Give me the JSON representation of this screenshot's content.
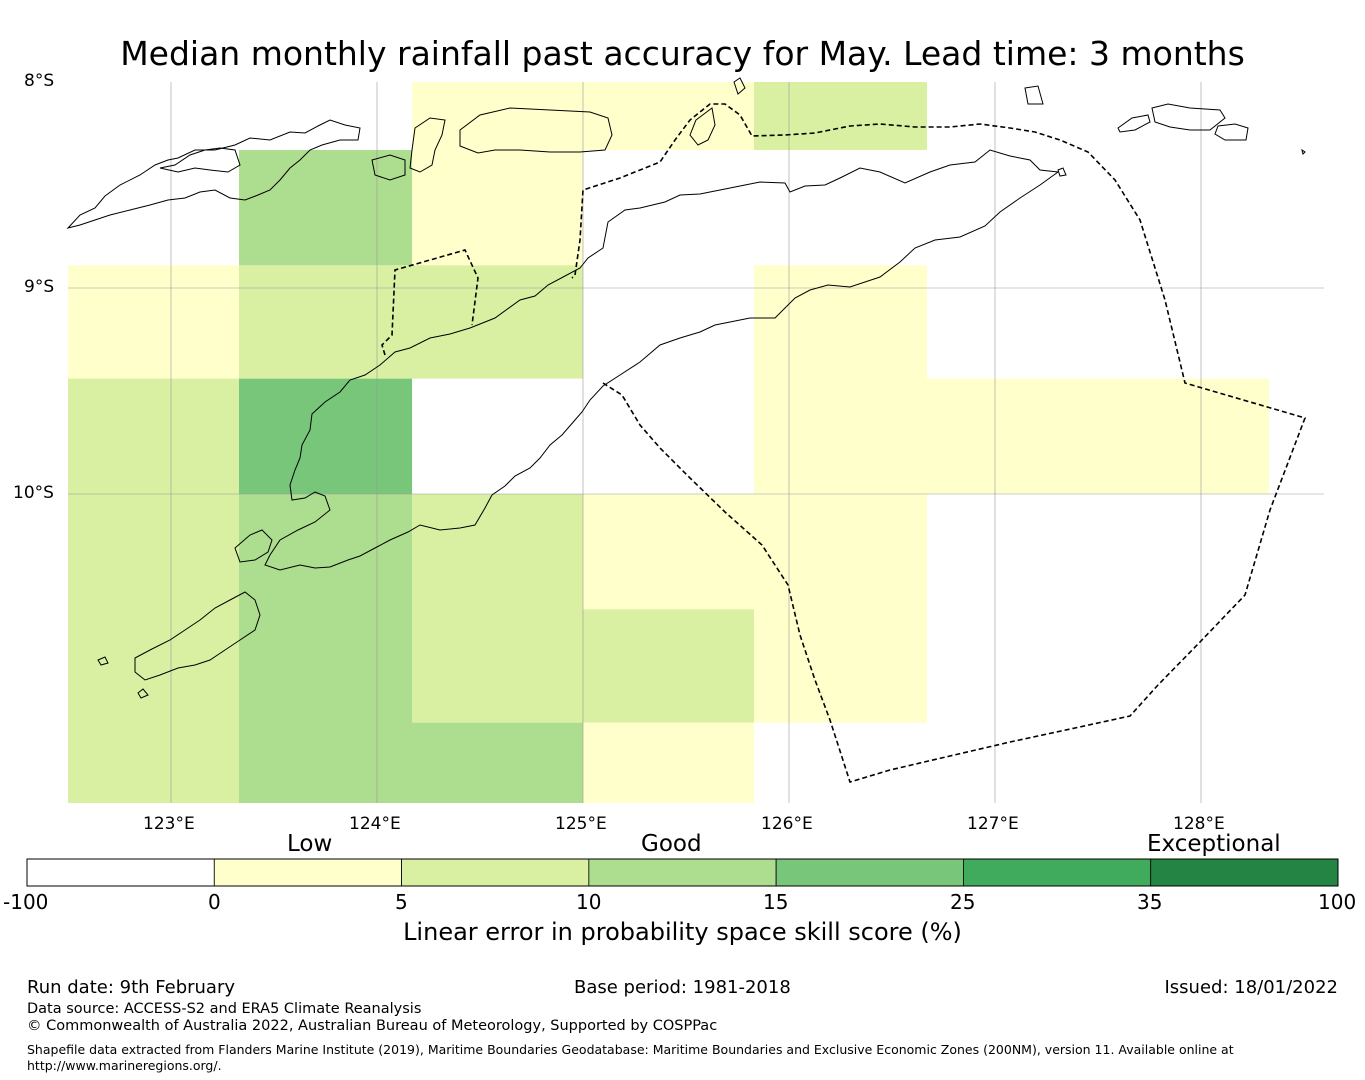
{
  "title": "Median monthly rainfall past accuracy for May. Lead time: 3 months",
  "map": {
    "lat_labels": [
      "8°S",
      "9°S",
      "10°S"
    ],
    "lon_labels": [
      "123°E",
      "124°E",
      "125°E",
      "126°E",
      "127°E",
      "128°E"
    ],
    "grid_cells": [
      {
        "lon": [
          124.17,
          125.0
        ],
        "lat": [
          -7.67,
          -8.33
        ],
        "category": "0-5"
      },
      {
        "lon": [
          125.0,
          125.83
        ],
        "lat": [
          -7.67,
          -8.33
        ],
        "category": "0-5"
      },
      {
        "lon": [
          125.83,
          126.67
        ],
        "lat": [
          -7.67,
          -8.33
        ],
        "category": "5-10"
      },
      {
        "lon": [
          123.33,
          124.17
        ],
        "lat": [
          -8.33,
          -8.89
        ],
        "category": "10-15"
      },
      {
        "lon": [
          124.17,
          125.0
        ],
        "lat": [
          -8.33,
          -8.89
        ],
        "category": "0-5"
      },
      {
        "lon": [
          122.5,
          123.33
        ],
        "lat": [
          -8.89,
          -9.44
        ],
        "category": "0-5"
      },
      {
        "lon": [
          123.33,
          125.0
        ],
        "lat": [
          -8.89,
          -9.44
        ],
        "category": "5-10"
      },
      {
        "lon": [
          125.83,
          126.67
        ],
        "lat": [
          -8.89,
          -9.44
        ],
        "category": "0-5"
      },
      {
        "lon": [
          122.5,
          123.33
        ],
        "lat": [
          -9.44,
          -10.0
        ],
        "category": "5-10"
      },
      {
        "lon": [
          123.33,
          124.17
        ],
        "lat": [
          -9.44,
          -10.0
        ],
        "category": "15-25"
      },
      {
        "lon": [
          125.83,
          128.33
        ],
        "lat": [
          -9.44,
          -10.0
        ],
        "category": "0-5"
      },
      {
        "lon": [
          122.5,
          123.33
        ],
        "lat": [
          -10.0,
          -11.5
        ],
        "category": "5-10"
      },
      {
        "lon": [
          123.33,
          124.17
        ],
        "lat": [
          -10.0,
          -11.5
        ],
        "category": "10-15"
      },
      {
        "lon": [
          124.17,
          125.0
        ],
        "lat": [
          -10.0,
          -11.11
        ],
        "category": "5-10"
      },
      {
        "lon": [
          124.17,
          125.0
        ],
        "lat": [
          -11.11,
          -11.5
        ],
        "category": "10-15"
      },
      {
        "lon": [
          125.0,
          126.67
        ],
        "lat": [
          -10.0,
          -10.56
        ],
        "category": "0-5"
      },
      {
        "lon": [
          125.0,
          125.83
        ],
        "lat": [
          -10.56,
          -11.11
        ],
        "category": "5-10"
      },
      {
        "lon": [
          125.83,
          126.67
        ],
        "lat": [
          -10.56,
          -11.11
        ],
        "category": "0-5"
      },
      {
        "lon": [
          125.0,
          125.83
        ],
        "lat": [
          -11.11,
          -11.5
        ],
        "category": "0-5"
      }
    ]
  },
  "colorbar": {
    "categories": [
      "Low",
      "Good",
      "Exceptional"
    ],
    "ticks": [
      "-100",
      "0",
      "5",
      "10",
      "15",
      "25",
      "35",
      "100"
    ],
    "colors": [
      "#ffffff",
      "#ffffcc",
      "#d9f0a3",
      "#addd8e",
      "#78c679",
      "#41ab5d",
      "#238443"
    ],
    "label": "Linear error in probability space skill score (%)"
  },
  "footer": {
    "run_date": "Run date: 9th February",
    "base_period": "Base period: 1981-2018",
    "issued": "Issued: 18/01/2022",
    "data_source": "Data source: ACCESS-S2 and ERA5 Climate Reanalysis",
    "copyright": "© Commonwealth of Australia 2022, Australian Bureau of Meteorology, Supported by COSPPac",
    "shapefile_line1": "Shapefile data extracted from Flanders Marine Institute (2019), Maritime Boundaries Geodatabase: Maritime Boundaries and Exclusive Economic Zones (200NM), version 11. Available online at",
    "shapefile_line2": "http://www.marineregions.org/."
  }
}
